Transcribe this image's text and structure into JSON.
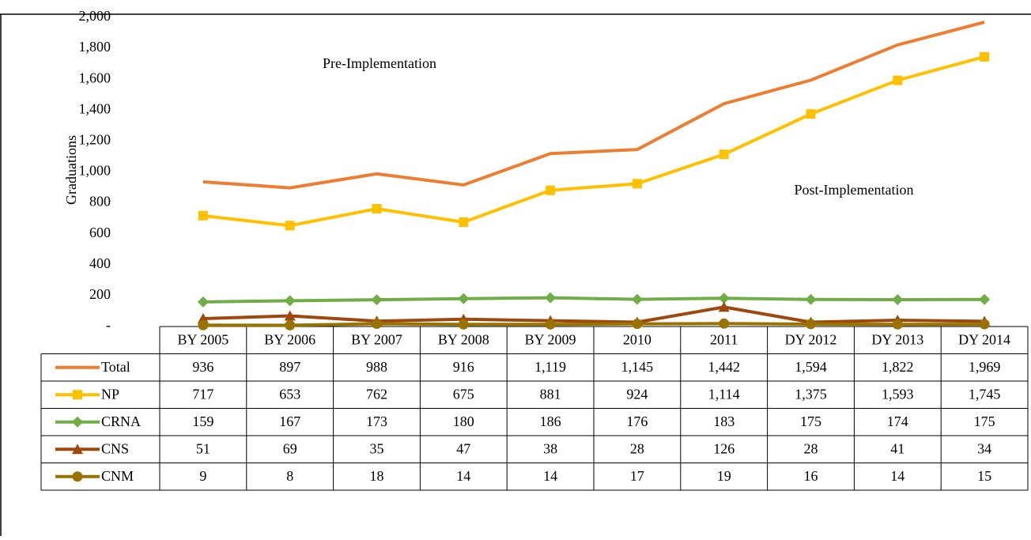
{
  "chart_data": {
    "type": "line",
    "y_label": "Graduations",
    "annotations": [
      "Pre-Implementation",
      "Post-Implementation"
    ],
    "categories": [
      "BY 2005",
      "BY 2006",
      "BY 2007",
      "BY 2008",
      "BY 2009",
      "2010",
      "2011",
      "DY 2012",
      "DY 2013",
      "DY 2014"
    ],
    "ylim": [
      0,
      2000
    ],
    "yticks": [
      {
        "value": 0,
        "label": "-"
      },
      200,
      400,
      600,
      800,
      {
        "value": 1000,
        "label": "1,000"
      },
      {
        "value": 1200,
        "label": "1,200"
      },
      {
        "value": 1400,
        "label": "1,400"
      },
      {
        "value": 1600,
        "label": "1,600"
      },
      {
        "value": 1800,
        "label": "1,800"
      },
      {
        "value": 2000,
        "label": "2,000"
      }
    ],
    "series": [
      {
        "name": "Total",
        "color": "#ed7d31",
        "marker": "none",
        "values": [
          936,
          897,
          988,
          916,
          1119,
          1145,
          1442,
          1594,
          1822,
          1969
        ],
        "value_labels": [
          "936",
          "897",
          "988",
          "916",
          "1,119",
          "1,145",
          "1,442",
          "1,594",
          "1,822",
          "1,969"
        ]
      },
      {
        "name": "NP",
        "color": "#ffc000",
        "marker": "square",
        "values": [
          717,
          653,
          762,
          675,
          881,
          924,
          1114,
          1375,
          1593,
          1745
        ],
        "value_labels": [
          "717",
          "653",
          "762",
          "675",
          "881",
          "924",
          "1,114",
          "1,375",
          "1,593",
          "1,745"
        ]
      },
      {
        "name": "CRNA",
        "color": "#70ad47",
        "marker": "diamond",
        "values": [
          159,
          167,
          173,
          180,
          186,
          176,
          183,
          175,
          174,
          175
        ]
      },
      {
        "name": "CNS",
        "color": "#9e480e",
        "marker": "triangle",
        "values": [
          51,
          69,
          35,
          47,
          38,
          28,
          126,
          28,
          41,
          34
        ]
      },
      {
        "name": "CNM",
        "color": "#997300",
        "marker": "circle",
        "values": [
          9,
          8,
          18,
          14,
          14,
          17,
          19,
          16,
          14,
          15
        ]
      }
    ]
  }
}
